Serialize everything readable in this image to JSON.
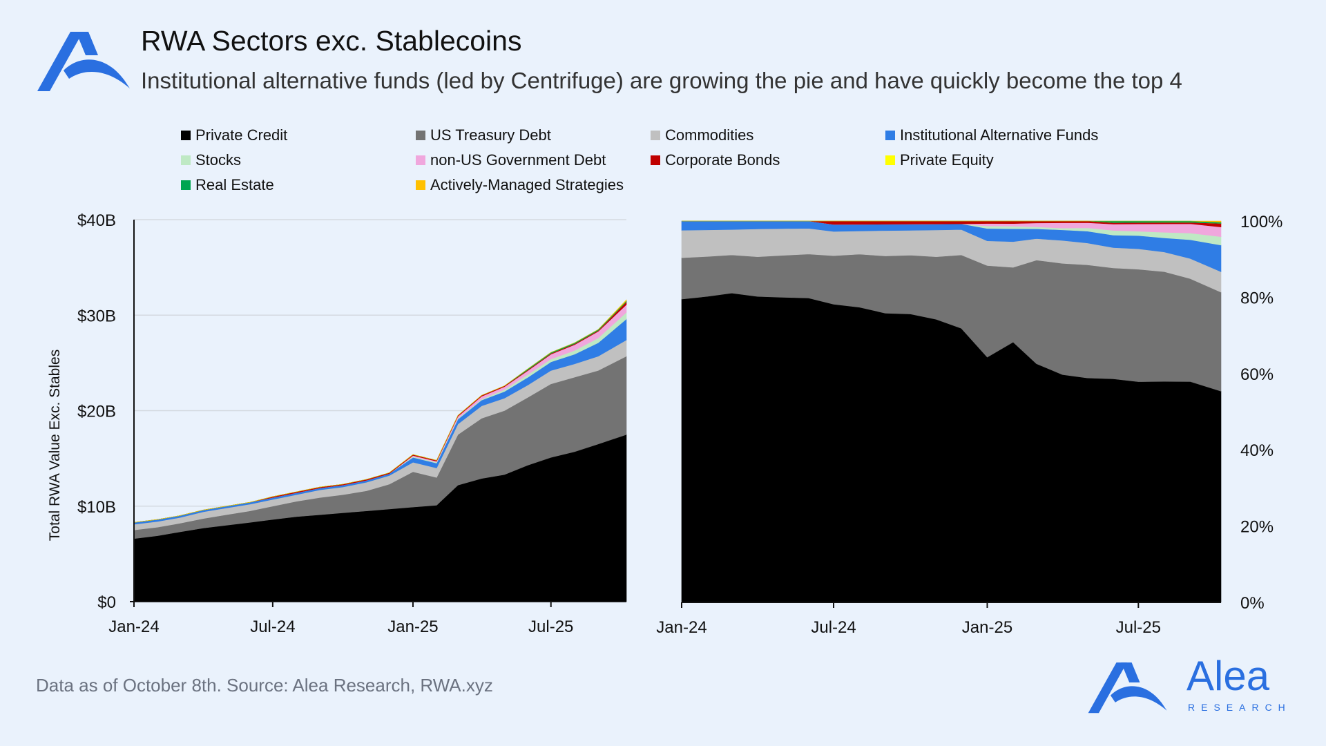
{
  "header": {
    "title": "RWA Sectors exc. Stablecoins",
    "subtitle": "Institutional alternative funds (led by Centrifuge) are growing the pie and have quickly become the top 4"
  },
  "footer": {
    "source": "Data as of October 8th. Source: Alea Research, RWA.xyz"
  },
  "brand": {
    "name": "Alea",
    "tagline": "RESEARCH",
    "color": "#2a6fe0",
    "icon": "alea-logo-icon"
  },
  "legend": [
    {
      "name": "Private Credit",
      "color": "#000000"
    },
    {
      "name": "US Treasury Debt",
      "color": "#737373"
    },
    {
      "name": "Commodities",
      "color": "#c0c0c0"
    },
    {
      "name": "Institutional Alternative Funds",
      "color": "#2f7de5"
    },
    {
      "name": "Stocks",
      "color": "#bfe9c4"
    },
    {
      "name": "non-US Government Debt",
      "color": "#f0a7dd"
    },
    {
      "name": "Corporate Bonds",
      "color": "#c00000"
    },
    {
      "name": "Private Equity",
      "color": "#ffff00"
    },
    {
      "name": "Real Estate",
      "color": "#00a550"
    },
    {
      "name": "Actively-Managed Strategies",
      "color": "#ffc000"
    }
  ],
  "chart_data": [
    {
      "type": "area",
      "stacked": true,
      "ylabel": "Total RWA Value Exc. Stables",
      "ylim": [
        0,
        40
      ],
      "yticks": [
        "$0",
        "$10B",
        "$20B",
        "$30B",
        "$40B"
      ],
      "yticks_values": [
        0,
        10,
        20,
        30,
        40
      ],
      "xticks": [
        "Jan-24",
        "Jul-24",
        "Jan-25",
        "Jul-25"
      ],
      "x": [
        "2024-01-01",
        "2024-02-01",
        "2024-03-01",
        "2024-04-01",
        "2024-05-01",
        "2024-06-01",
        "2024-07-01",
        "2024-08-01",
        "2024-09-01",
        "2024-10-01",
        "2024-11-01",
        "2024-12-01",
        "2025-01-01",
        "2025-02-01",
        "2025-03-01",
        "2025-04-01",
        "2025-05-01",
        "2025-06-01",
        "2025-07-01",
        "2025-08-01",
        "2025-09-01",
        "2025-10-08"
      ],
      "series": [
        {
          "name": "Private Credit",
          "values": [
            6.6,
            6.9,
            7.3,
            7.7,
            8.0,
            8.3,
            8.6,
            8.9,
            9.1,
            9.3,
            9.5,
            9.7,
            9.9,
            10.1,
            12.2,
            12.9,
            13.3,
            14.3,
            15.1,
            15.7,
            16.5,
            17.5
          ]
        },
        {
          "name": "US Treasury Debt",
          "values": [
            0.9,
            0.9,
            0.9,
            1.0,
            1.1,
            1.2,
            1.4,
            1.6,
            1.8,
            1.9,
            2.1,
            2.6,
            3.7,
            2.9,
            5.3,
            6.3,
            6.7,
            7.1,
            7.7,
            7.8,
            7.7,
            8.2
          ]
        },
        {
          "name": "Commodities",
          "values": [
            0.6,
            0.6,
            0.6,
            0.7,
            0.7,
            0.7,
            0.7,
            0.7,
            0.8,
            0.8,
            0.9,
            0.9,
            1.0,
            1.0,
            1.1,
            1.3,
            1.3,
            1.3,
            1.4,
            1.4,
            1.5,
            1.7
          ]
        },
        {
          "name": "Institutional Alternative Funds",
          "values": [
            0.2,
            0.2,
            0.2,
            0.2,
            0.2,
            0.2,
            0.2,
            0.2,
            0.2,
            0.2,
            0.2,
            0.2,
            0.5,
            0.5,
            0.5,
            0.6,
            0.7,
            0.8,
            0.9,
            1.0,
            1.4,
            2.2
          ]
        },
        {
          "name": "Stocks",
          "values": [
            0.0,
            0.0,
            0.0,
            0.0,
            0.0,
            0.0,
            0.0,
            0.0,
            0.0,
            0.0,
            0.0,
            0.0,
            0.1,
            0.1,
            0.1,
            0.1,
            0.2,
            0.3,
            0.3,
            0.4,
            0.5,
            0.7
          ]
        },
        {
          "name": "non-US Government Debt",
          "values": [
            0.0,
            0.0,
            0.0,
            0.0,
            0.0,
            0.0,
            0.0,
            0.0,
            0.0,
            0.0,
            0.0,
            0.0,
            0.1,
            0.1,
            0.2,
            0.3,
            0.3,
            0.4,
            0.5,
            0.6,
            0.7,
            0.8
          ]
        },
        {
          "name": "Corporate Bonds",
          "values": [
            0.0,
            0.0,
            0.0,
            0.0,
            0.0,
            0.0,
            0.1,
            0.1,
            0.1,
            0.1,
            0.1,
            0.1,
            0.1,
            0.1,
            0.1,
            0.1,
            0.1,
            0.1,
            0.1,
            0.1,
            0.1,
            0.3
          ]
        },
        {
          "name": "Private Equity",
          "values": [
            0,
            0,
            0,
            0,
            0,
            0,
            0,
            0,
            0,
            0,
            0,
            0,
            0,
            0,
            0,
            0,
            0,
            0,
            0,
            0,
            0,
            0
          ]
        },
        {
          "name": "Real Estate",
          "values": [
            0.0,
            0.0,
            0.0,
            0.0,
            0.0,
            0.0,
            0.0,
            0.0,
            0.0,
            0.0,
            0.0,
            0.0,
            0.0,
            0.0,
            0.0,
            0.0,
            0.0,
            0.1,
            0.1,
            0.1,
            0.1,
            0.1
          ]
        },
        {
          "name": "Actively-Managed Strategies",
          "values": [
            0,
            0,
            0,
            0,
            0,
            0,
            0,
            0,
            0,
            0,
            0,
            0,
            0,
            0,
            0,
            0,
            0,
            0,
            0,
            0,
            0,
            0.1
          ]
        }
      ],
      "grid": true
    },
    {
      "type": "area",
      "stacked": true,
      "normalized": true,
      "ylim": [
        0,
        100
      ],
      "yticks": [
        "0%",
        "20%",
        "40%",
        "60%",
        "80%",
        "100%"
      ],
      "yticks_values": [
        0,
        20,
        40,
        60,
        80,
        100
      ],
      "yaxis_position": "right",
      "xticks": [
        "Jan-24",
        "Jul-24",
        "Jan-25",
        "Jul-25"
      ],
      "x": "same as chart 1",
      "series": "same as chart 1 (shown as percentage share)",
      "grid": false
    }
  ]
}
